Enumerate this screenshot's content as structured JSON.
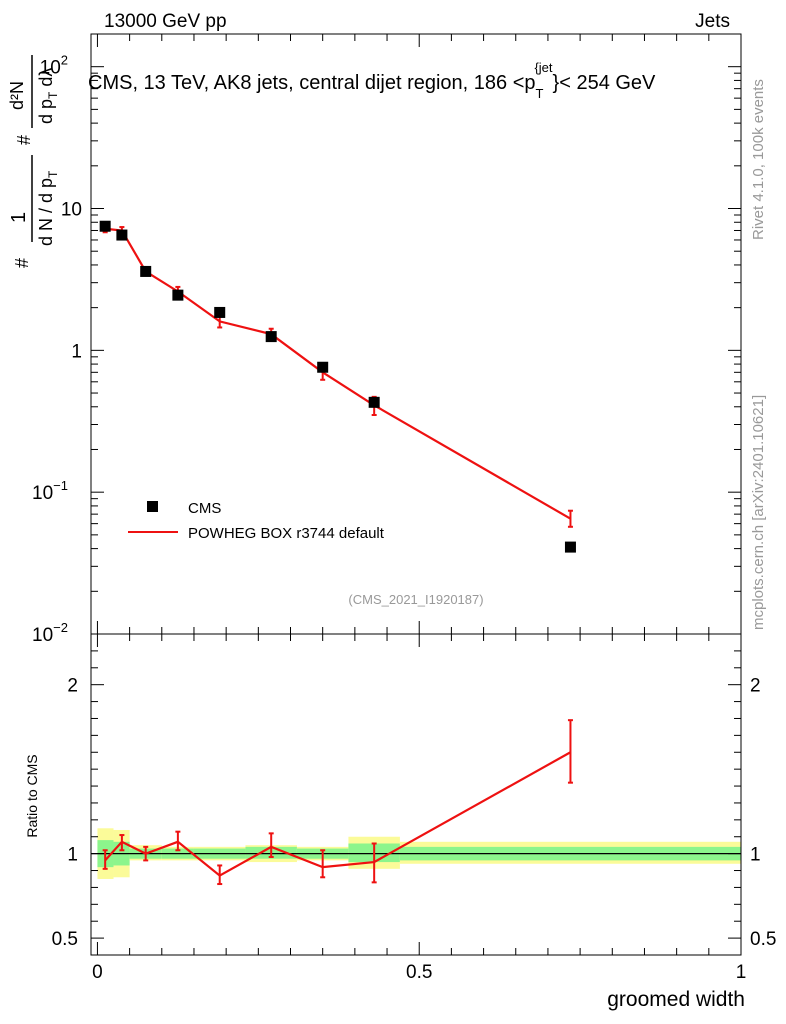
{
  "header": {
    "left": "13000 GeV pp",
    "right": "Jets"
  },
  "side_text": {
    "rivet": "Rivet 4.1.0,  100k events",
    "mcplots": "mcplots.cern.ch [arXiv:2401.10621]"
  },
  "colors": {
    "data": "#000000",
    "mc": "#ee1111",
    "band_inner": "#8cf58c",
    "band_outer": "#fbfb99",
    "axis": "#000000",
    "watermark": "#999999"
  },
  "chart_data": [
    {
      "type": "scatter",
      "name": "main",
      "title": "CMS, 13 TeV, AK8 jets, central dijet region, 186 <p_T^{jet}< 254 GeV",
      "title_parts": {
        "main": "CMS, 13 TeV, AK8 jets, central dijet region, 186 <p",
        "sub": "T",
        "sup": "{jet",
        "tail": "}< 254 GeV"
      },
      "ylabel": "1/dN/dp_T dN/dp_T dλ",
      "ylabel_parts": {
        "num1": "1",
        "den1": "d N / d p",
        "den1_sub": "T",
        "num2": "d²N",
        "den2": "d p",
        "den2_sub": "T",
        "den2_tail": " dλ",
        "hash": "#"
      },
      "yscale": "log",
      "ylim": [
        0.01,
        170
      ],
      "xlim": [
        -0.01,
        1.0
      ],
      "ytick_labels": [
        {
          "v": 100,
          "base": "10",
          "exp": "2"
        },
        {
          "v": 10,
          "base": "10",
          "exp": ""
        },
        {
          "v": 1,
          "base": "1",
          "exp": ""
        },
        {
          "v": 0.1,
          "base": "10",
          "exp": "−1"
        },
        {
          "v": 0.01,
          "base": "10",
          "exp": "−2"
        }
      ],
      "series": [
        {
          "name": "CMS",
          "kind": "markers",
          "points": [
            {
              "x": 0.012,
              "y": 7.5,
              "xlo": 0.0,
              "xhi": 0.025
            },
            {
              "x": 0.038,
              "y": 6.5,
              "xlo": 0.025,
              "xhi": 0.05
            },
            {
              "x": 0.075,
              "y": 3.6,
              "xlo": 0.05,
              "xhi": 0.1
            },
            {
              "x": 0.125,
              "y": 2.45,
              "xlo": 0.1,
              "xhi": 0.15
            },
            {
              "x": 0.19,
              "y": 1.85,
              "xlo": 0.15,
              "xhi": 0.23
            },
            {
              "x": 0.27,
              "y": 1.25,
              "xlo": 0.23,
              "xhi": 0.31
            },
            {
              "x": 0.35,
              "y": 0.76,
              "xlo": 0.31,
              "xhi": 0.39
            },
            {
              "x": 0.43,
              "y": 0.43,
              "xlo": 0.39,
              "xhi": 0.47
            },
            {
              "x": 0.735,
              "y": 0.041,
              "xlo": 0.47,
              "xhi": 1.0
            }
          ]
        },
        {
          "name": "POWHEG BOX r3744 default",
          "kind": "line",
          "points": [
            {
              "x": 0.012,
              "y": 7.2,
              "elo": 6.8,
              "ehi": 7.6
            },
            {
              "x": 0.038,
              "y": 7.0,
              "elo": 6.6,
              "ehi": 7.4
            },
            {
              "x": 0.075,
              "y": 3.6,
              "elo": 3.4,
              "ehi": 3.8
            },
            {
              "x": 0.125,
              "y": 2.6,
              "elo": 2.4,
              "ehi": 2.8
            },
            {
              "x": 0.19,
              "y": 1.6,
              "elo": 1.45,
              "ehi": 1.75
            },
            {
              "x": 0.27,
              "y": 1.3,
              "elo": 1.18,
              "ehi": 1.42
            },
            {
              "x": 0.35,
              "y": 0.7,
              "elo": 0.62,
              "ehi": 0.8
            },
            {
              "x": 0.43,
              "y": 0.41,
              "elo": 0.35,
              "ehi": 0.47
            },
            {
              "x": 0.735,
              "y": 0.065,
              "elo": 0.057,
              "ehi": 0.074
            }
          ]
        }
      ],
      "legend": [
        {
          "label": "CMS",
          "marker": "square"
        },
        {
          "label": "POWHEG BOX r3744 default",
          "marker": "line"
        }
      ],
      "legend_position": "lower-left",
      "annotation": "(CMS_2021_I1920187)"
    },
    {
      "type": "line",
      "name": "ratio",
      "ylabel": "Ratio to CMS",
      "xlabel": "groomed width",
      "ylim": [
        0.4,
        2.3
      ],
      "xlim": [
        -0.01,
        1.0
      ],
      "yticks": [
        0.5,
        1,
        2
      ],
      "ytick_labels": [
        "0.5",
        "1",
        "2"
      ],
      "xticks": [
        0,
        0.5,
        1
      ],
      "xtick_labels": [
        "0",
        "0.5",
        "1"
      ],
      "bands": [
        {
          "xlo": 0.0,
          "xhi": 0.025,
          "in_lo": 0.92,
          "in_hi": 1.08,
          "out_lo": 0.85,
          "out_hi": 1.15
        },
        {
          "xlo": 0.025,
          "xhi": 0.05,
          "in_lo": 0.93,
          "in_hi": 1.07,
          "out_lo": 0.86,
          "out_hi": 1.14
        },
        {
          "xlo": 0.05,
          "xhi": 0.1,
          "in_lo": 0.97,
          "in_hi": 1.03,
          "out_lo": 0.96,
          "out_hi": 1.05
        },
        {
          "xlo": 0.1,
          "xhi": 0.15,
          "in_lo": 0.97,
          "in_hi": 1.03,
          "out_lo": 0.96,
          "out_hi": 1.04
        },
        {
          "xlo": 0.15,
          "xhi": 0.23,
          "in_lo": 0.97,
          "in_hi": 1.03,
          "out_lo": 0.96,
          "out_hi": 1.04
        },
        {
          "xlo": 0.23,
          "xhi": 0.31,
          "in_lo": 0.97,
          "in_hi": 1.04,
          "out_lo": 0.95,
          "out_hi": 1.05
        },
        {
          "xlo": 0.31,
          "xhi": 0.39,
          "in_lo": 0.97,
          "in_hi": 1.03,
          "out_lo": 0.96,
          "out_hi": 1.04
        },
        {
          "xlo": 0.39,
          "xhi": 0.47,
          "in_lo": 0.95,
          "in_hi": 1.06,
          "out_lo": 0.91,
          "out_hi": 1.1
        },
        {
          "xlo": 0.47,
          "xhi": 1.0,
          "in_lo": 0.96,
          "in_hi": 1.04,
          "out_lo": 0.94,
          "out_hi": 1.07
        }
      ],
      "series": [
        {
          "name": "POWHEG BOX r3744 default / CMS",
          "points": [
            {
              "x": 0.012,
              "y": 0.96,
              "elo": 0.91,
              "ehi": 1.02
            },
            {
              "x": 0.038,
              "y": 1.07,
              "elo": 1.02,
              "ehi": 1.11
            },
            {
              "x": 0.075,
              "y": 1.0,
              "elo": 0.96,
              "ehi": 1.04
            },
            {
              "x": 0.125,
              "y": 1.07,
              "elo": 1.02,
              "ehi": 1.13
            },
            {
              "x": 0.19,
              "y": 0.87,
              "elo": 0.82,
              "ehi": 0.93
            },
            {
              "x": 0.27,
              "y": 1.04,
              "elo": 0.98,
              "ehi": 1.12
            },
            {
              "x": 0.35,
              "y": 0.92,
              "elo": 0.86,
              "ehi": 1.02
            },
            {
              "x": 0.43,
              "y": 0.95,
              "elo": 0.83,
              "ehi": 1.06
            },
            {
              "x": 0.735,
              "y": 1.6,
              "elo": 1.42,
              "ehi": 1.79
            }
          ]
        }
      ]
    }
  ]
}
